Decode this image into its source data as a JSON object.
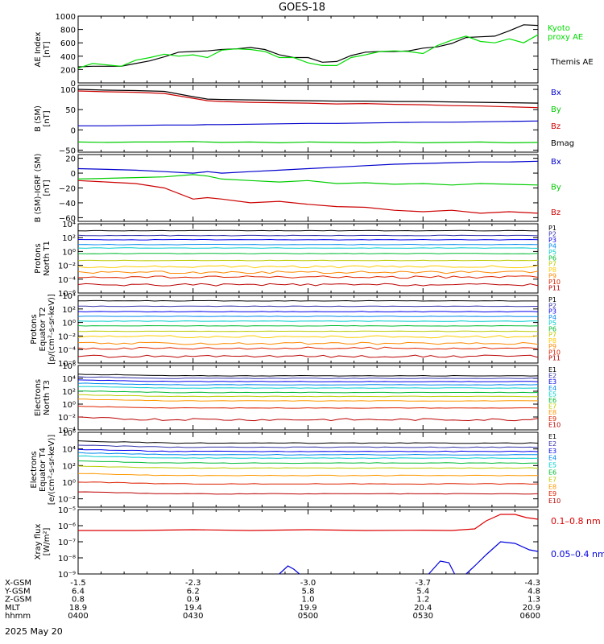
{
  "title": "GOES-18",
  "footer": {
    "rows": [
      {
        "label": "X-GSM",
        "values": [
          "-1.5",
          "-2.3",
          "-3.0",
          "-3.7",
          "-4.3"
        ]
      },
      {
        "label": "Y-GSM",
        "values": [
          "6.4",
          "6.2",
          "5.8",
          "5.4",
          "4.8"
        ]
      },
      {
        "label": "Z-GSM",
        "values": [
          "0.8",
          "0.9",
          "1.0",
          "1.2",
          "1.3"
        ]
      },
      {
        "label": "MLT",
        "values": [
          "18.9",
          "19.4",
          "19.9",
          "20.4",
          "20.9"
        ]
      },
      {
        "label": "hhmm",
        "values": [
          "0400",
          "0430",
          "0500",
          "0530",
          "0600"
        ]
      }
    ],
    "date": "2025 May 20"
  },
  "chart_data": [
    {
      "type": "line",
      "panel": "ae",
      "ylabel": [
        "AE Index",
        "[nT]"
      ],
      "ylim": [
        0,
        1000
      ],
      "yticks": [
        {
          "v": 0,
          "t": "0"
        },
        {
          "v": 200,
          "t": "200"
        },
        {
          "v": 400,
          "t": "400"
        },
        {
          "v": 600,
          "t": "600"
        },
        {
          "v": 800,
          "t": "800"
        },
        {
          "v": 1000,
          "t": "1000"
        }
      ],
      "x_hours": [
        0,
        0.25,
        0.5,
        0.75,
        1,
        1.25,
        1.5,
        1.75,
        2,
        2.25,
        2.5,
        2.75,
        3,
        3.25,
        3.5,
        3.75,
        4,
        4.25,
        4.5,
        4.75,
        5,
        5.25,
        5.5,
        5.75,
        6,
        6.25,
        6.5,
        6.75,
        7,
        7.25,
        7.5,
        7.75,
        8
      ],
      "series": [
        {
          "name": "Themis AE",
          "color": "#000000",
          "values": [
            240,
            250,
            250,
            250,
            290,
            330,
            390,
            460,
            470,
            480,
            500,
            510,
            530,
            500,
            420,
            380,
            380,
            310,
            320,
            410,
            460,
            470,
            470,
            480,
            520,
            540,
            590,
            680,
            690,
            700,
            780,
            870,
            860
          ]
        },
        {
          "name": "Kyoto proxy AE",
          "color": "#00dd00",
          "values": [
            220,
            290,
            270,
            250,
            340,
            380,
            430,
            400,
            420,
            380,
            490,
            510,
            500,
            470,
            380,
            380,
            300,
            260,
            260,
            380,
            420,
            470,
            480,
            470,
            440,
            560,
            640,
            700,
            620,
            600,
            660,
            600,
            720
          ]
        }
      ],
      "legend": [
        "Kyoto proxy AE",
        "Themis AE"
      ]
    },
    {
      "type": "line",
      "panel": "b_sm",
      "ylabel": [
        "B (SM)",
        "[nT]"
      ],
      "ylim": [
        -55,
        110
      ],
      "yticks": [
        {
          "v": -50,
          "t": "−50"
        },
        {
          "v": 0,
          "t": "0"
        },
        {
          "v": 50,
          "t": "50"
        },
        {
          "v": 100,
          "t": "100"
        }
      ],
      "x_hours": [
        0,
        0.5,
        1,
        1.5,
        2,
        2.25,
        2.5,
        3,
        3.5,
        4,
        4.5,
        5,
        5.5,
        6,
        6.5,
        7,
        7.5,
        8
      ],
      "series": [
        {
          "name": "Bx",
          "color": "#0000cc",
          "values": [
            10,
            10,
            11,
            12,
            12,
            13,
            13,
            14,
            15,
            16,
            16,
            17,
            18,
            19,
            19,
            20,
            21,
            22
          ]
        },
        {
          "name": "By",
          "color": "#00cc00",
          "values": [
            -30,
            -31,
            -30,
            -30,
            -29,
            -30,
            -31,
            -30,
            -32,
            -30,
            -31,
            -32,
            -30,
            -32,
            -31,
            -30,
            -32,
            -31
          ]
        },
        {
          "name": "Bz",
          "color": "#cc0000",
          "values": [
            96,
            94,
            93,
            90,
            78,
            72,
            70,
            68,
            67,
            66,
            64,
            65,
            63,
            62,
            60,
            59,
            57,
            55
          ]
        },
        {
          "name": "Bmag",
          "color": "#000000",
          "values": [
            100,
            98,
            97,
            95,
            82,
            76,
            75,
            74,
            73,
            72,
            71,
            71,
            70,
            70,
            69,
            68,
            67,
            66
          ]
        }
      ]
    },
    {
      "type": "line",
      "panel": "b_igrf",
      "ylabel": [
        "B (SM)-IGRF (SM)",
        "[nT]"
      ],
      "ylim": [
        -65,
        25
      ],
      "yticks": [
        {
          "v": -60,
          "t": "−60"
        },
        {
          "v": -40,
          "t": "−40"
        },
        {
          "v": -20,
          "t": "−20"
        },
        {
          "v": 0,
          "t": "0"
        },
        {
          "v": 20,
          "t": "20"
        }
      ],
      "x_hours": [
        0,
        0.5,
        1,
        1.5,
        2,
        2.25,
        2.5,
        3,
        3.5,
        4,
        4.5,
        5,
        5.5,
        6,
        6.5,
        7,
        7.5,
        8
      ],
      "series": [
        {
          "name": "Bx",
          "color": "#0000cc",
          "values": [
            6,
            5,
            4,
            2,
            0,
            2,
            0,
            2,
            4,
            6,
            8,
            10,
            12,
            13,
            14,
            15,
            15,
            16
          ]
        },
        {
          "name": "By",
          "color": "#00cc00",
          "values": [
            -8,
            -7,
            -6,
            -5,
            -2,
            -4,
            -8,
            -10,
            -12,
            -10,
            -14,
            -13,
            -15,
            -14,
            -16,
            -14,
            -15,
            -16
          ]
        },
        {
          "name": "Bz",
          "color": "#cc0000",
          "values": [
            -10,
            -12,
            -14,
            -20,
            -35,
            -33,
            -35,
            -40,
            -38,
            -42,
            -45,
            -46,
            -50,
            -52,
            -50,
            -54,
            -52,
            -54
          ]
        }
      ]
    },
    {
      "type": "line",
      "panel": "protons_t1",
      "ylabel": [
        "Protons",
        "North T1"
      ],
      "ylog": true,
      "ylim": [
        -6,
        4
      ],
      "yticks": [
        {
          "v": 4,
          "t": "10⁴"
        },
        {
          "v": 2,
          "t": "10²"
        },
        {
          "v": 0,
          "t": "10⁰"
        },
        {
          "v": -2,
          "t": "10⁻²"
        },
        {
          "v": -4,
          "t": "10⁻⁴"
        },
        {
          "v": -6,
          "t": "10⁻⁶"
        }
      ],
      "channels": [
        {
          "name": "P1",
          "color": "#000000",
          "log": 3.0
        },
        {
          "name": "P2",
          "color": "#3333aa",
          "log": 2.3
        },
        {
          "name": "P3",
          "color": "#0000ee",
          "log": 1.7
        },
        {
          "name": "P4",
          "color": "#0088ee",
          "log": 1.0
        },
        {
          "name": "P5",
          "color": "#00cccc",
          "log": 0.5
        },
        {
          "name": "P6",
          "color": "#00bb33",
          "log": -0.3
        },
        {
          "name": "P7",
          "color": "#bbcc00",
          "log": -1.3
        },
        {
          "name": "P8",
          "color": "#ffcc00",
          "log": -2.2
        },
        {
          "name": "P9",
          "color": "#ff8800",
          "log": -3.0
        },
        {
          "name": "P10",
          "color": "#dd2200",
          "log": -3.7
        },
        {
          "name": "P11",
          "color": "#bb0000",
          "log": -4.8
        }
      ]
    },
    {
      "type": "line",
      "panel": "protons_t2",
      "ylabel": [
        "Protons",
        "Equator T2",
        "[p/(cm²-s-sr-keV)]"
      ],
      "ylog": true,
      "ylim": [
        -6,
        4
      ],
      "yticks": [
        {
          "v": 4,
          "t": "10⁴"
        },
        {
          "v": 2,
          "t": "10²"
        },
        {
          "v": 0,
          "t": "10⁰"
        },
        {
          "v": -2,
          "t": "10⁻²"
        },
        {
          "v": -4,
          "t": "10⁻⁴"
        },
        {
          "v": -6,
          "t": "10⁻⁶"
        }
      ],
      "channels": [
        {
          "name": "P1",
          "color": "#000000",
          "log": 3.2
        },
        {
          "name": "P2",
          "color": "#3333aa",
          "log": 2.4
        },
        {
          "name": "P3",
          "color": "#0000ee",
          "log": 1.6
        },
        {
          "name": "P4",
          "color": "#0088ee",
          "log": 0.9
        },
        {
          "name": "P5",
          "color": "#00cccc",
          "log": 0.2
        },
        {
          "name": "P6",
          "color": "#00bb33",
          "log": -0.5
        },
        {
          "name": "P7",
          "color": "#bbcc00",
          "log": -1.3
        },
        {
          "name": "P8",
          "color": "#ffcc00",
          "log": -2.1
        },
        {
          "name": "P9",
          "color": "#ff8800",
          "log": -3.1
        },
        {
          "name": "P10",
          "color": "#dd2200",
          "log": -3.8
        },
        {
          "name": "P11",
          "color": "#bb0000",
          "log": -5.0
        }
      ]
    },
    {
      "type": "line",
      "panel": "electrons_t3",
      "ylabel": [
        "Electrons",
        "North T3"
      ],
      "ylog": true,
      "ylim": [
        -4,
        6
      ],
      "yticks": [
        {
          "v": 6,
          "t": "10⁶"
        },
        {
          "v": 4,
          "t": "10⁴"
        },
        {
          "v": 2,
          "t": "10²"
        },
        {
          "v": 0,
          "t": "10⁰"
        },
        {
          "v": -2,
          "t": "10⁻²"
        },
        {
          "v": -4,
          "t": "10⁻⁴"
        }
      ],
      "channels": [
        {
          "name": "E1",
          "color": "#000000",
          "log": 4.4
        },
        {
          "name": "E2",
          "color": "#3333aa",
          "log": 4.0
        },
        {
          "name": "E3",
          "color": "#0000ee",
          "log": 3.5
        },
        {
          "name": "E4",
          "color": "#0088ee",
          "log": 3.0
        },
        {
          "name": "E5",
          "color": "#00cccc",
          "log": 2.5
        },
        {
          "name": "E6",
          "color": "#00bb33",
          "log": 1.8
        },
        {
          "name": "E7",
          "color": "#bbcc00",
          "log": 1.2
        },
        {
          "name": "E8",
          "color": "#ff9900",
          "log": 0.5
        },
        {
          "name": "E9",
          "color": "#dd2200",
          "log": -0.6
        },
        {
          "name": "E10",
          "color": "#bb0000",
          "log": -2.4
        }
      ]
    },
    {
      "type": "line",
      "panel": "electrons_t4",
      "ylabel": [
        "Electrons",
        "Equator T4",
        "[e/(cm²-s-sr-keV)]"
      ],
      "ylog": true,
      "ylim": [
        -3,
        6
      ],
      "yticks": [
        {
          "v": 6,
          "t": "10⁶"
        },
        {
          "v": 4,
          "t": "10⁴"
        },
        {
          "v": 2,
          "t": "10²"
        },
        {
          "v": 0,
          "t": "10⁰"
        },
        {
          "v": -2,
          "t": "10⁻²"
        }
      ],
      "channels": [
        {
          "name": "E1",
          "color": "#000000",
          "log": 4.7
        },
        {
          "name": "E2",
          "color": "#3333aa",
          "log": 4.2
        },
        {
          "name": "E3",
          "color": "#0000ee",
          "log": 3.7
        },
        {
          "name": "E4",
          "color": "#0088ee",
          "log": 3.3
        },
        {
          "name": "E5",
          "color": "#00cccc",
          "log": 2.9
        },
        {
          "name": "E6",
          "color": "#00bb33",
          "log": 2.3
        },
        {
          "name": "E7",
          "color": "#bbcc00",
          "log": 1.7
        },
        {
          "name": "E8",
          "color": "#ff9900",
          "log": 0.8
        },
        {
          "name": "E9",
          "color": "#dd2200",
          "log": -0.2
        },
        {
          "name": "E10",
          "color": "#bb0000",
          "log": -1.4
        }
      ]
    },
    {
      "type": "line",
      "panel": "xray",
      "ylabel": [
        "Xray flux",
        "[W/m²]"
      ],
      "ylog": true,
      "ylim": [
        -9,
        -5
      ],
      "yticks": [
        {
          "v": -5,
          "t": "10⁻⁵"
        },
        {
          "v": -6,
          "t": "10⁻⁶"
        },
        {
          "v": -7,
          "t": "10⁻⁷"
        },
        {
          "v": -8,
          "t": "10⁻⁸"
        },
        {
          "v": -9,
          "t": "10⁻⁹"
        }
      ],
      "series": [
        {
          "name": "0.1–0.8 nm",
          "color": "#dd0000",
          "x_hours": [
            0,
            1,
            2,
            3,
            4,
            5,
            6,
            6.5,
            6.9,
            7.1,
            7.35,
            7.6,
            7.8,
            8
          ],
          "log": [
            -6.3,
            -6.3,
            -6.25,
            -6.3,
            -6.25,
            -6.3,
            -6.28,
            -6.3,
            -6.2,
            -5.7,
            -5.3,
            -5.3,
            -5.5,
            -5.6
          ]
        },
        {
          "name": "0.05–0.4 nm",
          "color": "#0000dd",
          "x_hours": [
            3.5,
            3.65,
            3.75,
            3.85,
            null,
            6.1,
            6.3,
            6.45,
            6.55,
            null,
            6.75,
            6.9,
            7.1,
            7.35,
            7.6,
            7.85,
            8
          ],
          "log": [
            -9.0,
            -8.5,
            -8.7,
            -9.0,
            null,
            -9.0,
            -8.2,
            -8.3,
            -9.0,
            null,
            -9.0,
            -8.5,
            -7.8,
            -7.0,
            -7.1,
            -7.5,
            -7.6
          ]
        }
      ]
    }
  ]
}
